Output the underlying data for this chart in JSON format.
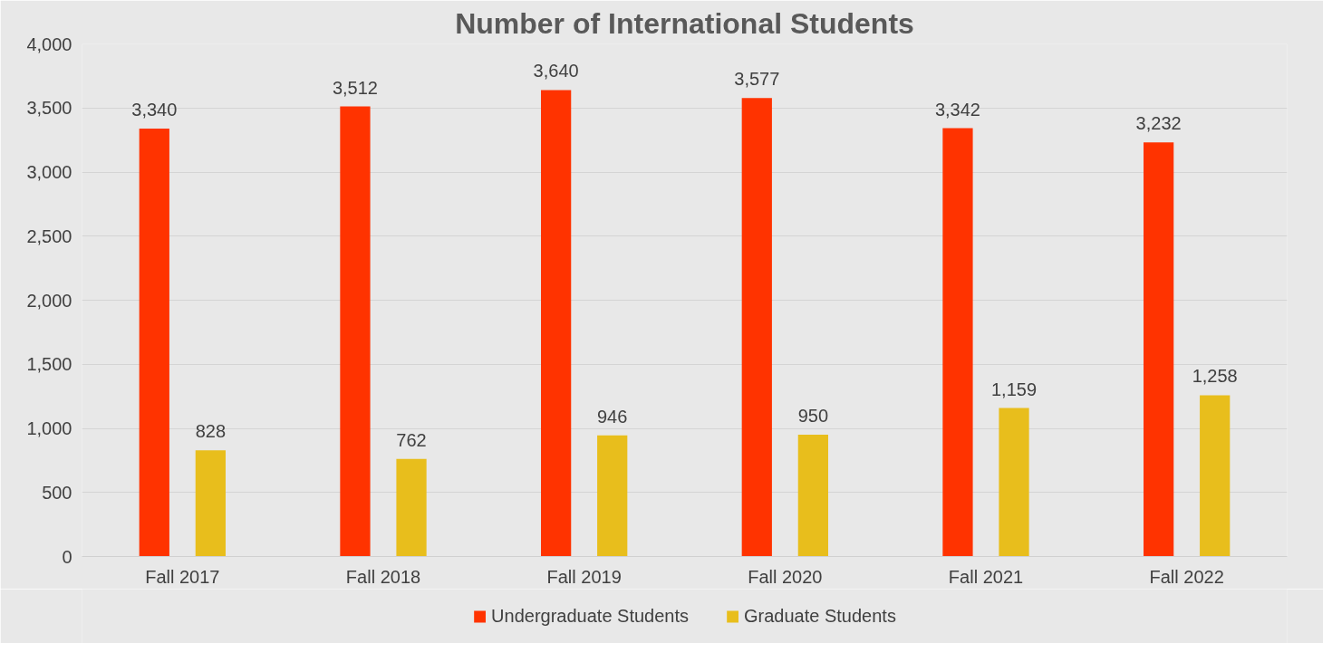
{
  "chart_data": {
    "type": "bar",
    "title": "Number of International Students",
    "categories": [
      "Fall 2017",
      "Fall 2018",
      "Fall 2019",
      "Fall 2020",
      "Fall 2021",
      "Fall 2022"
    ],
    "series": [
      {
        "name": "Undergraduate Students",
        "color": "#ff3300",
        "values": [
          3340,
          3512,
          3640,
          3577,
          3342,
          3232
        ],
        "value_labels": [
          "3,340",
          "3,512",
          "3,640",
          "3,577",
          "3,342",
          "3,232"
        ]
      },
      {
        "name": "Graduate Students",
        "color": "#e8be1c",
        "values": [
          828,
          762,
          946,
          950,
          1159,
          1258
        ],
        "value_labels": [
          "828",
          "762",
          "946",
          "950",
          "1,159",
          "1,258"
        ]
      }
    ],
    "ylim": [
      0,
      4000
    ],
    "yticks": [
      0,
      {
        "value": 500,
        "label": "500"
      },
      {
        "value": 1000,
        "label": "1,000"
      },
      {
        "value": 1500,
        "label": "1,500"
      },
      {
        "value": 2000,
        "label": "2,000"
      },
      {
        "value": 2500,
        "label": "2,500"
      },
      {
        "value": 3000,
        "label": "3,000"
      },
      {
        "value": 3500,
        "label": "3,500"
      },
      {
        "value": 4000,
        "label": "4,000"
      }
    ],
    "grid": "y",
    "legend": "bottom"
  }
}
